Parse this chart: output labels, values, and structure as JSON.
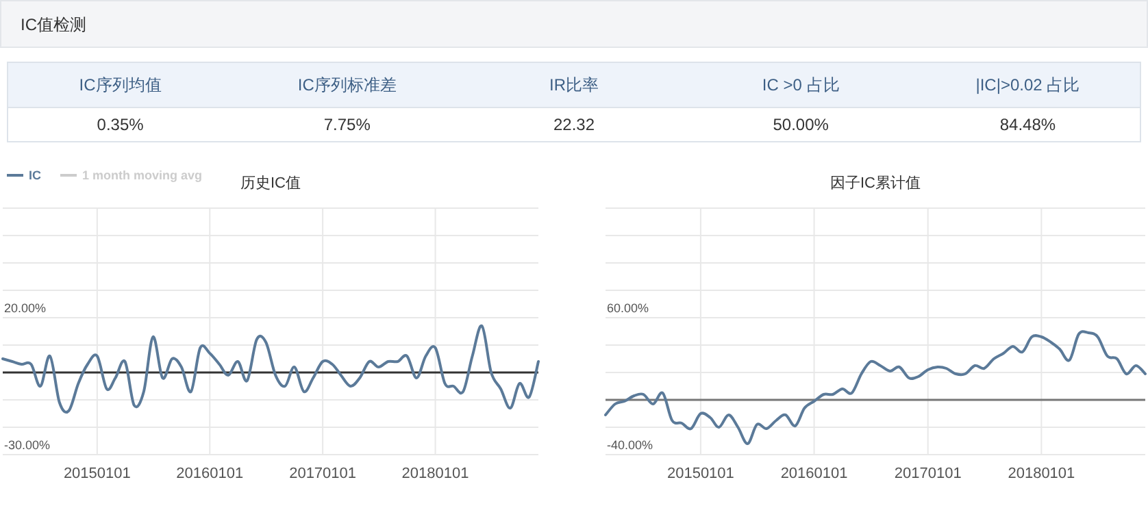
{
  "chart_data": [
    {
      "type": "other",
      "title": "IC值检测",
      "annotations": [
        "IC序列均值",
        "IC序列标准差",
        "IR比率",
        "IC >0 占比",
        "|IC|>0.02 占比",
        "0.35%",
        "7.75%",
        "22.32",
        "50.00%",
        "84.48%"
      ]
    },
    {
      "type": "line",
      "title": "历史IC值",
      "x": [
        "2014-03",
        "2014-04",
        "2014-05",
        "2014-06",
        "2014-07",
        "2014-08",
        "2014-09",
        "2014-10",
        "2014-11",
        "2014-12",
        "2015-01",
        "2015-02",
        "2015-03",
        "2015-04",
        "2015-05",
        "2015-06",
        "2015-07",
        "2015-08",
        "2015-09",
        "2015-10",
        "2015-11",
        "2015-12",
        "2016-01",
        "2016-02",
        "2016-03",
        "2016-04",
        "2016-05",
        "2016-06",
        "2016-07",
        "2016-08",
        "2016-09",
        "2016-10",
        "2016-11",
        "2016-12",
        "2017-01",
        "2017-02",
        "2017-03",
        "2017-04",
        "2017-05",
        "2017-06",
        "2017-07",
        "2017-08",
        "2017-09",
        "2017-10",
        "2017-11",
        "2017-12",
        "2018-01",
        "2018-02",
        "2018-03",
        "2018-04",
        "2018-05",
        "2018-06",
        "2018-07",
        "2018-08",
        "2018-09",
        "2018-10",
        "2018-11",
        "2018-12"
      ],
      "series": [
        {
          "name": "IC",
          "color": "#5b7a99",
          "values": [
            5,
            4,
            3,
            3,
            -5,
            6,
            -11,
            -14,
            -4,
            3,
            6,
            -6,
            -2,
            4,
            -12,
            -7,
            13,
            -2,
            5,
            2,
            -7,
            9,
            7,
            3,
            -1,
            4,
            -3,
            12,
            11,
            -1,
            -5,
            2,
            -7,
            -2,
            4,
            3,
            -1,
            -5,
            -2,
            4,
            2,
            4,
            4,
            6,
            -2,
            6,
            9,
            -4,
            -5,
            -7,
            6,
            17,
            0,
            -6,
            -13,
            -4,
            -9,
            4
          ]
        },
        {
          "name": "1 month moving avg",
          "color": "#cccccc",
          "values": [
            null,
            null,
            null,
            null,
            null,
            null,
            null,
            null,
            null,
            null,
            null,
            null,
            null,
            null,
            null,
            null,
            null,
            null,
            null,
            null,
            null,
            null,
            null,
            null,
            null,
            null,
            null,
            null,
            null,
            null,
            null,
            null,
            null,
            null,
            null,
            null,
            null,
            null,
            null,
            null,
            null,
            null,
            null,
            null,
            null,
            null,
            null,
            null,
            null,
            null,
            null,
            null,
            null,
            null,
            null,
            null,
            null,
            null
          ]
        }
      ],
      "xlim": [
        "2014-03",
        "2018-12"
      ],
      "xticks": [
        {
          "value": "2015-01-01",
          "label": "20150101"
        },
        {
          "value": "2016-01-01",
          "label": "20160101"
        },
        {
          "value": "2017-01-01",
          "label": "20170101"
        },
        {
          "value": "2018-01-01",
          "label": "20180101"
        }
      ],
      "ylim": [
        -30,
        60
      ],
      "yticks": [
        {
          "value": 60,
          "label": null
        },
        {
          "value": 50,
          "label": null
        },
        {
          "value": 40,
          "label": null
        },
        {
          "value": 30,
          "label": null
        },
        {
          "value": 20,
          "label": "20.00%"
        },
        {
          "value": 10,
          "label": null
        },
        {
          "value": 0,
          "label": null
        },
        {
          "value": -10,
          "label": null
        },
        {
          "value": -20,
          "label": null
        },
        {
          "value": -30,
          "label": "-30.00%"
        }
      ],
      "grid": true,
      "legend": "top left",
      "ref_lines": [
        {
          "axis": "y",
          "value": 0,
          "color": "#333333"
        }
      ]
    },
    {
      "type": "line",
      "title": "因子IC累计值",
      "x": [
        "2014-03",
        "2014-04",
        "2014-05",
        "2014-06",
        "2014-07",
        "2014-08",
        "2014-09",
        "2014-10",
        "2014-11",
        "2014-12",
        "2015-01",
        "2015-02",
        "2015-03",
        "2015-04",
        "2015-05",
        "2015-06",
        "2015-07",
        "2015-08",
        "2015-09",
        "2015-10",
        "2015-11",
        "2015-12",
        "2016-01",
        "2016-02",
        "2016-03",
        "2016-04",
        "2016-05",
        "2016-06",
        "2016-07",
        "2016-08",
        "2016-09",
        "2016-10",
        "2016-11",
        "2016-12",
        "2017-01",
        "2017-02",
        "2017-03",
        "2017-04",
        "2017-05",
        "2017-06",
        "2017-07",
        "2017-08",
        "2017-09",
        "2017-10",
        "2017-11",
        "2017-12",
        "2018-01",
        "2018-02",
        "2018-03",
        "2018-04",
        "2018-05",
        "2018-06",
        "2018-07",
        "2018-08",
        "2018-09",
        "2018-10",
        "2018-11",
        "2018-12"
      ],
      "series": [
        {
          "color": "#5b7a99",
          "values": [
            -11,
            -3,
            -1,
            3,
            4,
            -3,
            5,
            -15,
            -17,
            -21,
            -10,
            -13,
            -20,
            -11,
            -20,
            -32,
            -18,
            -21,
            -15,
            -11,
            -19,
            -6,
            -1,
            4,
            4,
            8,
            5,
            19,
            28,
            25,
            21,
            24,
            16,
            17,
            22,
            24,
            23,
            19,
            19,
            25,
            23,
            30,
            34,
            39,
            35,
            46,
            46,
            42,
            37,
            29,
            48,
            49,
            46,
            32,
            30,
            19,
            25,
            19
          ]
        }
      ],
      "xlim": [
        "2014-03",
        "2018-12"
      ],
      "xticks": [
        {
          "value": "2015-01-01",
          "label": "20150101"
        },
        {
          "value": "2016-01-01",
          "label": "20160101"
        },
        {
          "value": "2017-01-01",
          "label": "20170101"
        },
        {
          "value": "2018-01-01",
          "label": "20180101"
        }
      ],
      "ylim": [
        -40,
        140
      ],
      "yticks": [
        {
          "value": 140,
          "label": null
        },
        {
          "value": 120,
          "label": null
        },
        {
          "value": 100,
          "label": null
        },
        {
          "value": 80,
          "label": null
        },
        {
          "value": 60,
          "label": "60.00%"
        },
        {
          "value": 40,
          "label": null
        },
        {
          "value": 20,
          "label": null
        },
        {
          "value": 0,
          "label": null
        },
        {
          "value": -20,
          "label": null
        },
        {
          "value": -40,
          "label": "-40.00%"
        }
      ],
      "grid": true,
      "ref_lines": [
        {
          "axis": "y",
          "value": 0,
          "color": "#777777"
        }
      ]
    }
  ]
}
